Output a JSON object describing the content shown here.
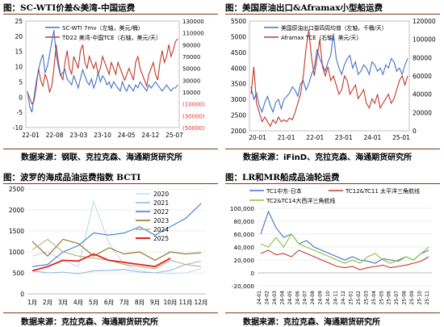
{
  "panels": [
    {
      "title": "图：SC-WTI价差&美湾-中国运费",
      "source": "数据来源：钢联、克拉克森、海通期货研究所",
      "chart_data": {
        "type": "line",
        "x_ticks": [
          "22-01",
          "22-08",
          "23-03",
          "23-10",
          "24-05",
          "24-12",
          "25-07"
        ],
        "left_axis": {
          "ticks": [
            25,
            20,
            15,
            10,
            5,
            0,
            -5,
            -10
          ],
          "range": [
            -10,
            25
          ]
        },
        "right_axis": {
          "ticks": [
            "130000",
            "110000",
            "90000",
            "70000",
            "50000",
            "30000",
            "10000",
            "(10000)",
            "(30000)",
            "(50000)"
          ],
          "range": [
            -50000,
            130000
          ],
          "negative_color": "#e03030"
        },
        "series": [
          {
            "name": "SC-WTI 7mv（左轴，美元/桶）",
            "color": "#4472c4",
            "axis": "left",
            "values": [
              2,
              -3,
              -5,
              0,
              5,
              9,
              12,
              14,
              8,
              10,
              14,
              18,
              22,
              14,
              10,
              7,
              8,
              9,
              6,
              5,
              4,
              7,
              5,
              3,
              6,
              9,
              7,
              5,
              4,
              6,
              3,
              5,
              8,
              5,
              7,
              6,
              4,
              5,
              3,
              5,
              4,
              3,
              2,
              5,
              3,
              2,
              4,
              3,
              2,
              4,
              3,
              5,
              4,
              3,
              2,
              4,
              3,
              4,
              5,
              4,
              3,
              2,
              3,
              4,
              3,
              2,
              3,
              3,
              4
            ]
          },
          {
            "name": "TD22 美湾-中国TCE（右轴，美元/天）",
            "color": "#c0392b",
            "axis": "right",
            "values": [
              10000,
              0,
              -10000,
              -5000,
              20000,
              50000,
              30000,
              20000,
              40000,
              30000,
              10000,
              20000,
              50000,
              90000,
              60000,
              40000,
              30000,
              60000,
              80000,
              50000,
              40000,
              70000,
              60000,
              50000,
              80000,
              90000,
              60000,
              50000,
              70000,
              60000,
              50000,
              60000,
              40000,
              50000,
              70000,
              60000,
              50000,
              40000,
              60000,
              50000,
              40000,
              60000,
              50000,
              40000,
              30000,
              40000,
              50000,
              40000,
              30000,
              60000,
              70000,
              50000,
              40000,
              30000,
              20000,
              40000,
              50000,
              60000,
              40000,
              30000,
              60000,
              80000,
              60000,
              70000,
              90000,
              70000,
              80000,
              95000,
              100000
            ]
          }
        ]
      }
    },
    {
      "title": "图：美国原油出口&Aframax小型船运费",
      "source": "数据来源：iFinD、克拉克森、海通期货研究所",
      "chart_data": {
        "type": "line",
        "x_ticks": [
          "20-01",
          "21-01",
          "22-01",
          "23-01",
          "24-01",
          "25-01"
        ],
        "left_axis": {
          "ticks": [
            5500,
            5000,
            4500,
            4000,
            3500,
            3000,
            2500,
            2000
          ],
          "range": [
            2000,
            5500
          ]
        },
        "right_axis": {
          "ticks": [
            120000,
            100000,
            80000,
            60000,
            40000,
            20000,
            0
          ],
          "range": [
            0,
            120000
          ]
        },
        "series": [
          {
            "name": "美国原油出口量四周均值（左轴，千桶/天）",
            "color": "#4472c4",
            "axis": "left",
            "values": [
              3400,
              3000,
              3200,
              2800,
              2600,
              2900,
              3100,
              2800,
              2600,
              2900,
              3000,
              2700,
              3000,
              3100,
              3200,
              3400,
              3300,
              3100,
              3500,
              3600,
              3300,
              3500,
              3800,
              4000,
              4600,
              4300,
              4100,
              3900,
              4200,
              4400,
              5100,
              4300,
              4000,
              3800,
              4100,
              4300,
              4400,
              4000,
              4200,
              3800,
              3900,
              4100,
              4000,
              3800,
              4200,
              4100,
              3900,
              4000,
              3800,
              4100,
              4000,
              4300,
              4200,
              3900,
              4000,
              3800,
              4100,
              4300
            ]
          },
          {
            "name": "Aframax TCE（右轴，美元/天）",
            "color": "#c0392b",
            "axis": "right",
            "values": [
              40000,
              70000,
              30000,
              20000,
              10000,
              15000,
              10000,
              5000,
              12000,
              8000,
              15000,
              10000,
              12000,
              10000,
              14000,
              12000,
              20000,
              30000,
              40000,
              60000,
              90000,
              110000,
              80000,
              60000,
              80000,
              100000,
              70000,
              60000,
              70000,
              55000,
              60000,
              50000,
              40000,
              45000,
              60000,
              55000,
              40000,
              45000,
              50000,
              35000,
              40000,
              45000,
              30000,
              25000,
              35000,
              30000,
              40000,
              25000,
              30000,
              35000,
              40000,
              30000,
              35000,
              45000,
              55000,
              60000,
              50000,
              60000
            ]
          }
        ]
      }
    },
    {
      "title": "图：波罗的海成品油运费指数 BCTI",
      "source": "数据来源：克拉克森、海通期货研究所",
      "chart_data": {
        "type": "line",
        "categories": [
          "1月",
          "2月",
          "3月",
          "4月",
          "5月",
          "6月",
          "7月",
          "8月",
          "9月",
          "10月",
          "11月",
          "12月"
        ],
        "y_ticks": [
          2500,
          2000,
          1500,
          1000,
          500,
          0
        ],
        "ylim": [
          0,
          2500
        ],
        "series": [
          {
            "name": "2020",
            "color": "#c5d8ee",
            "values": [
              900,
              1000,
              800,
              650,
              2200,
              1200,
              700,
              550,
              500,
              480,
              500,
              600
            ]
          },
          {
            "name": "2021",
            "color": "#8fb4de",
            "values": [
              550,
              500,
              520,
              480,
              550,
              560,
              580,
              520,
              500,
              560,
              700,
              780
            ]
          },
          {
            "name": "2022",
            "color": "#3d7cc9",
            "values": [
              650,
              700,
              1000,
              1150,
              1450,
              1400,
              1450,
              1600,
              1400,
              1600,
              1800,
              2150
            ]
          },
          {
            "name": "2023",
            "color": "#8a6d1f",
            "values": [
              1250,
              900,
              1300,
              1200,
              900,
              1100,
              950,
              1000,
              800,
              1000,
              950,
              980
            ]
          },
          {
            "name": "2024",
            "color": "#b9b07a",
            "values": [
              1050,
              1300,
              1000,
              900,
              850,
              800,
              700,
              650,
              600,
              800,
              700,
              650
            ]
          },
          {
            "name": "2025",
            "color": "#e02020",
            "values": [
              550,
              650,
              800,
              780,
              950,
              800,
              750,
              700,
              650,
              850,
              0,
              0
            ],
            "points": 10
          }
        ]
      }
    },
    {
      "title": "图：LR和MR船成品油轮运费",
      "source": "数据来源：克拉克森、海通期货研究所",
      "chart_data": {
        "type": "line",
        "x_ticks": [
          "24-01",
          "24-02",
          "24-03",
          "24-04",
          "24-05",
          "24-06",
          "24-07",
          "24-08",
          "24-09",
          "24-10",
          "24-11",
          "24-12",
          "25-01",
          "25-02",
          "25-03",
          "25-04",
          "25-05",
          "25-06",
          "25-07",
          "25-08",
          "25-09",
          "25-10",
          "25-11"
        ],
        "y_ticks": [
          100000,
          80000,
          60000,
          40000,
          20000,
          0,
          -20000
        ],
        "ylim": [
          -20000,
          100000
        ],
        "series": [
          {
            "name": "TC1中东-日本",
            "color": "#4472c4",
            "values": [
              60000,
              95000,
              70000,
              55000,
              60000,
              45000,
              50000,
              40000,
              35000,
              30000,
              25000,
              20000,
              25000,
              20000,
              18000,
              15000,
              22000,
              20000,
              18000,
              25000,
              20000,
              30000,
              35000
            ]
          },
          {
            "name": "TC12&TC11 太平洋三角航线",
            "color": "#c0392b",
            "values": [
              30000,
              35000,
              28000,
              30000,
              25000,
              35000,
              30000,
              25000,
              20000,
              15000,
              10000,
              8000,
              10000,
              5000,
              8000,
              10000,
              12000,
              8000,
              10000,
              12000,
              15000,
              18000,
              25000
            ]
          },
          {
            "name": "TC2&TC14大西洋三角航线",
            "color": "#8dbf3c",
            "values": [
              45000,
              40000,
              55000,
              40000,
              60000,
              45000,
              40000,
              35000,
              30000,
              25000,
              20000,
              15000,
              20000,
              15000,
              25000,
              30000,
              20000,
              15000,
              20000,
              25000,
              20000,
              30000,
              40000
            ]
          }
        ]
      }
    }
  ]
}
